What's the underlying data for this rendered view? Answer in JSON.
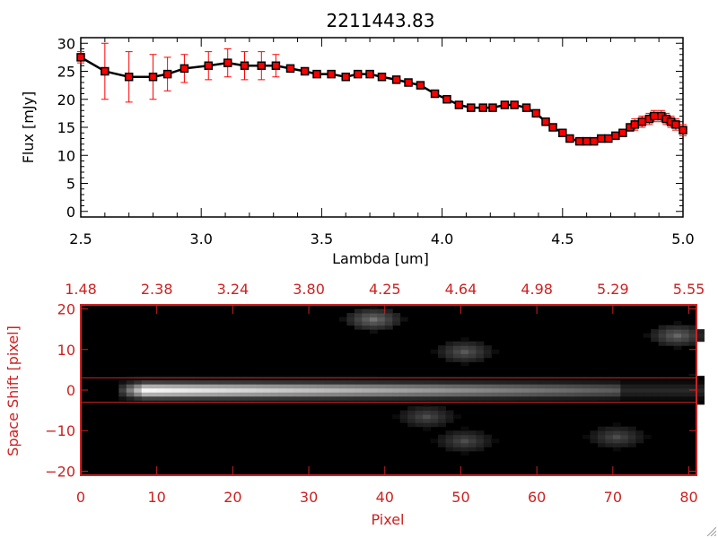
{
  "chart_data": [
    {
      "type": "line",
      "title": "2211443.83",
      "xlabel": "Lambda [um]",
      "ylabel": "Flux [mJy]",
      "xlim": [
        2.5,
        5.0
      ],
      "ylim": [
        -1,
        31
      ],
      "x_ticks": [
        2.5,
        3.0,
        3.5,
        4.0,
        4.5,
        5.0
      ],
      "x_tick_labels": [
        "2.5",
        "3.0",
        "3.5",
        "4.0",
        "4.5",
        "5.0"
      ],
      "y_ticks": [
        0,
        5,
        10,
        15,
        20,
        25,
        30
      ],
      "y_tick_labels": [
        "0",
        "5",
        "10",
        "15",
        "20",
        "25",
        "30"
      ],
      "series": [
        {
          "name": "flux",
          "line_color": "#000000",
          "marker_color": "#ff0000",
          "errorbar_color": "#ff0000",
          "x": [
            2.5,
            2.6,
            2.7,
            2.8,
            2.86,
            2.93,
            3.03,
            3.11,
            3.18,
            3.25,
            3.31,
            3.37,
            3.43,
            3.48,
            3.54,
            3.6,
            3.65,
            3.7,
            3.75,
            3.81,
            3.86,
            3.91,
            3.97,
            4.02,
            4.07,
            4.12,
            4.17,
            4.21,
            4.26,
            4.3,
            4.35,
            4.39,
            4.43,
            4.46,
            4.5,
            4.53,
            4.57,
            4.6,
            4.63,
            4.66,
            4.69,
            4.72,
            4.75,
            4.78,
            4.8,
            4.83,
            4.86,
            4.88,
            4.91,
            4.93,
            4.95,
            4.97,
            5.0
          ],
          "y": [
            27.5,
            25,
            24,
            24,
            24.5,
            25.5,
            26,
            26.5,
            26,
            26,
            26,
            25.5,
            25,
            24.5,
            24.5,
            24,
            24.5,
            24.5,
            24,
            23.5,
            23,
            22.5,
            21,
            20,
            19,
            18.5,
            18.5,
            18.5,
            19,
            19,
            18.5,
            17.5,
            16,
            15,
            14,
            13,
            12.5,
            12.5,
            12.5,
            13,
            13,
            13.5,
            14,
            15,
            15.5,
            16,
            16.5,
            17,
            17,
            16.5,
            16,
            15.5,
            14.5
          ],
          "err": [
            1,
            5,
            4.5,
            4,
            3,
            2.5,
            2.5,
            2.5,
            2.5,
            2.5,
            2,
            0.5,
            0.5,
            0.5,
            0.5,
            0.5,
            0.5,
            0.5,
            0.5,
            0.5,
            0.5,
            0.5,
            0.5,
            0.5,
            0.5,
            0.5,
            0.5,
            0.5,
            0.5,
            0.5,
            0.5,
            0.5,
            0.5,
            0.5,
            0.5,
            0.5,
            0.5,
            0.5,
            0.5,
            0.5,
            0.5,
            0.5,
            0.5,
            0.5,
            1,
            1,
            1,
            1,
            1,
            1,
            1,
            1,
            1
          ]
        }
      ]
    },
    {
      "type": "heatmap",
      "xlabel": "Pixel",
      "ylabel": "Space Shift [pixel]",
      "xlim": [
        0,
        81
      ],
      "ylim": [
        -21,
        21
      ],
      "x_ticks": [
        0,
        10,
        20,
        30,
        40,
        50,
        60,
        70,
        80
      ],
      "x_tick_labels": [
        "0",
        "10",
        "20",
        "30",
        "40",
        "50",
        "60",
        "70",
        "80"
      ],
      "y_ticks": [
        -20,
        -10,
        0,
        10,
        20
      ],
      "y_tick_labels": [
        "−20",
        "−10",
        "0",
        "10",
        "20"
      ],
      "top_axis_positions": [
        0,
        10,
        20,
        30,
        40,
        50,
        60,
        70,
        80
      ],
      "top_axis_labels": [
        "1.48",
        "2.38",
        "3.24",
        "3.80",
        "4.25",
        "4.64",
        "4.98",
        "5.29",
        "5.55"
      ],
      "aperture_lines": [
        3,
        -3
      ],
      "axis_color": "#cc2222",
      "trace": {
        "y_center": 0,
        "brightness_start": 1.0,
        "brightness_end": 0.35,
        "x_start": 5,
        "x_end": 70
      },
      "blobs": [
        {
          "x": 38,
          "y": 17,
          "intensity": 0.45
        },
        {
          "x": 78,
          "y": 13,
          "intensity": 0.4
        },
        {
          "x": 50,
          "y": 9,
          "intensity": 0.35
        },
        {
          "x": 45,
          "y": -7,
          "intensity": 0.3
        },
        {
          "x": 50,
          "y": -13,
          "intensity": 0.3
        },
        {
          "x": 70,
          "y": -12,
          "intensity": 0.3
        },
        {
          "x": 80,
          "y": 0,
          "intensity": 0.5
        }
      ]
    }
  ]
}
